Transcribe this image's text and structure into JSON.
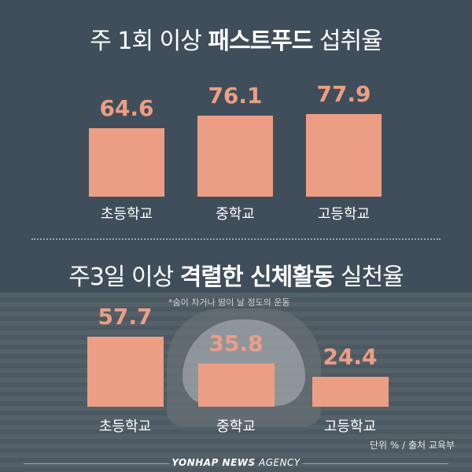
{
  "chart_data": [
    {
      "type": "bar",
      "title_prefix": "주 1회 이상 ",
      "title_bold": "패스트푸드",
      "title_suffix": " 섭취율",
      "categories": [
        "초등학교",
        "중학교",
        "고등학교"
      ],
      "values": [
        64.6,
        76.1,
        77.9
      ],
      "ylim": [
        0,
        100
      ],
      "grid": false
    },
    {
      "type": "bar",
      "title_prefix": "주3일 이상 ",
      "title_bold": "격렬한 신체활동",
      "title_suffix": " 실천율",
      "note": "*숨이 차거나 땀이 날 정도의 운동",
      "categories": [
        "초등학교",
        "중학교",
        "고등학교"
      ],
      "values": [
        57.7,
        35.8,
        24.4
      ],
      "ylim": [
        0,
        100
      ],
      "grid": false
    }
  ],
  "footer": {
    "source": "단위 % / 출처 교육부",
    "brand_bold": "YONHAP NEWS",
    "brand_rest": " AGENCY"
  },
  "colors": {
    "bar": "#ec9e84",
    "background": "#3f4e5a",
    "text": "#ffffff"
  }
}
